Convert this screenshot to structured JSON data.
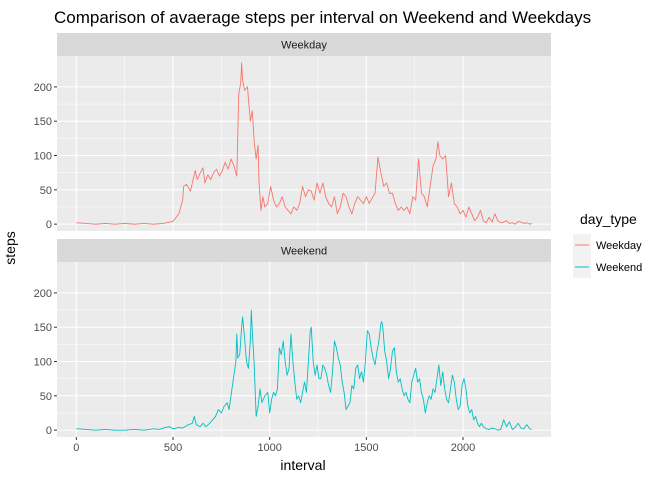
{
  "chart_data": {
    "type": "line",
    "title": "Comparison of avaerage steps per interval on Weekend and Weekdays",
    "xlabel": "interval",
    "ylabel": "steps",
    "xlim": [
      -100,
      2455
    ],
    "ylim": [
      -10,
      245
    ],
    "x_ticks": [
      0,
      500,
      1000,
      1500,
      2000
    ],
    "y_ticks": [
      0,
      50,
      100,
      150,
      200
    ],
    "grid": true,
    "legend": {
      "title": "day_type",
      "position": "right"
    },
    "panels": [
      {
        "label": "Weekday",
        "series": "Weekday",
        "points": [
          [
            0,
            2
          ],
          [
            50,
            1
          ],
          [
            100,
            0
          ],
          [
            150,
            1
          ],
          [
            200,
            0
          ],
          [
            250,
            1
          ],
          [
            300,
            0
          ],
          [
            350,
            1
          ],
          [
            400,
            0
          ],
          [
            450,
            1
          ],
          [
            500,
            4
          ],
          [
            530,
            15
          ],
          [
            550,
            35
          ],
          [
            555,
            55
          ],
          [
            570,
            58
          ],
          [
            590,
            48
          ],
          [
            600,
            60
          ],
          [
            615,
            78
          ],
          [
            625,
            65
          ],
          [
            640,
            74
          ],
          [
            655,
            82
          ],
          [
            665,
            60
          ],
          [
            680,
            72
          ],
          [
            695,
            65
          ],
          [
            710,
            75
          ],
          [
            725,
            80
          ],
          [
            740,
            70
          ],
          [
            755,
            78
          ],
          [
            770,
            90
          ],
          [
            785,
            80
          ],
          [
            800,
            95
          ],
          [
            815,
            85
          ],
          [
            830,
            70
          ],
          [
            840,
            190
          ],
          [
            850,
            205
          ],
          [
            855,
            235
          ],
          [
            860,
            210
          ],
          [
            870,
            195
          ],
          [
            885,
            200
          ],
          [
            900,
            150
          ],
          [
            910,
            165
          ],
          [
            920,
            120
          ],
          [
            930,
            95
          ],
          [
            940,
            115
          ],
          [
            945,
            60
          ],
          [
            955,
            20
          ],
          [
            965,
            40
          ],
          [
            975,
            25
          ],
          [
            990,
            30
          ],
          [
            1005,
            55
          ],
          [
            1020,
            35
          ],
          [
            1035,
            25
          ],
          [
            1050,
            30
          ],
          [
            1065,
            40
          ],
          [
            1080,
            25
          ],
          [
            1095,
            20
          ],
          [
            1110,
            15
          ],
          [
            1125,
            25
          ],
          [
            1140,
            20
          ],
          [
            1155,
            30
          ],
          [
            1170,
            55
          ],
          [
            1185,
            40
          ],
          [
            1200,
            50
          ],
          [
            1215,
            48
          ],
          [
            1230,
            35
          ],
          [
            1245,
            60
          ],
          [
            1260,
            45
          ],
          [
            1275,
            60
          ],
          [
            1290,
            40
          ],
          [
            1305,
            30
          ],
          [
            1320,
            25
          ],
          [
            1335,
            40
          ],
          [
            1350,
            15
          ],
          [
            1365,
            25
          ],
          [
            1380,
            45
          ],
          [
            1395,
            40
          ],
          [
            1410,
            25
          ],
          [
            1425,
            15
          ],
          [
            1440,
            30
          ],
          [
            1455,
            40
          ],
          [
            1470,
            35
          ],
          [
            1485,
            30
          ],
          [
            1500,
            40
          ],
          [
            1515,
            30
          ],
          [
            1530,
            38
          ],
          [
            1545,
            45
          ],
          [
            1560,
            98
          ],
          [
            1575,
            75
          ],
          [
            1590,
            55
          ],
          [
            1605,
            60
          ],
          [
            1620,
            45
          ],
          [
            1635,
            45
          ],
          [
            1650,
            30
          ],
          [
            1665,
            20
          ],
          [
            1680,
            25
          ],
          [
            1695,
            20
          ],
          [
            1710,
            25
          ],
          [
            1725,
            15
          ],
          [
            1740,
            40
          ],
          [
            1755,
            35
          ],
          [
            1770,
            95
          ],
          [
            1785,
            45
          ],
          [
            1800,
            40
          ],
          [
            1815,
            25
          ],
          [
            1830,
            55
          ],
          [
            1845,
            85
          ],
          [
            1860,
            95
          ],
          [
            1870,
            120
          ],
          [
            1880,
            100
          ],
          [
            1895,
            95
          ],
          [
            1910,
            100
          ],
          [
            1925,
            40
          ],
          [
            1940,
            60
          ],
          [
            1955,
            30
          ],
          [
            1970,
            25
          ],
          [
            1985,
            15
          ],
          [
            2000,
            20
          ],
          [
            2015,
            10
          ],
          [
            2030,
            25
          ],
          [
            2045,
            15
          ],
          [
            2060,
            5
          ],
          [
            2075,
            10
          ],
          [
            2090,
            20
          ],
          [
            2105,
            5
          ],
          [
            2120,
            2
          ],
          [
            2135,
            10
          ],
          [
            2150,
            3
          ],
          [
            2165,
            15
          ],
          [
            2180,
            5
          ],
          [
            2195,
            2
          ],
          [
            2210,
            3
          ],
          [
            2225,
            5
          ],
          [
            2240,
            1
          ],
          [
            2255,
            2
          ],
          [
            2270,
            0
          ],
          [
            2285,
            4
          ],
          [
            2300,
            3
          ],
          [
            2315,
            1
          ],
          [
            2330,
            2
          ],
          [
            2345,
            0
          ],
          [
            2355,
            1
          ]
        ]
      },
      {
        "label": "Weekend",
        "series": "Weekend",
        "points": [
          [
            0,
            2
          ],
          [
            50,
            1
          ],
          [
            100,
            0
          ],
          [
            150,
            1
          ],
          [
            200,
            0
          ],
          [
            250,
            0
          ],
          [
            300,
            1
          ],
          [
            350,
            0
          ],
          [
            400,
            2
          ],
          [
            430,
            1
          ],
          [
            450,
            3
          ],
          [
            480,
            5
          ],
          [
            500,
            2
          ],
          [
            530,
            4
          ],
          [
            550,
            3
          ],
          [
            580,
            8
          ],
          [
            600,
            10
          ],
          [
            610,
            20
          ],
          [
            620,
            8
          ],
          [
            640,
            5
          ],
          [
            655,
            10
          ],
          [
            670,
            5
          ],
          [
            690,
            10
          ],
          [
            705,
            15
          ],
          [
            720,
            20
          ],
          [
            735,
            30
          ],
          [
            750,
            25
          ],
          [
            765,
            35
          ],
          [
            780,
            40
          ],
          [
            790,
            30
          ],
          [
            800,
            50
          ],
          [
            815,
            80
          ],
          [
            825,
            100
          ],
          [
            830,
            140
          ],
          [
            835,
            105
          ],
          [
            845,
            110
          ],
          [
            855,
            150
          ],
          [
            860,
            165
          ],
          [
            870,
            135
          ],
          [
            880,
            100
          ],
          [
            890,
            90
          ],
          [
            900,
            130
          ],
          [
            905,
            175
          ],
          [
            910,
            145
          ],
          [
            920,
            95
          ],
          [
            930,
            20
          ],
          [
            940,
            35
          ],
          [
            950,
            60
          ],
          [
            960,
            40
          ],
          [
            975,
            50
          ],
          [
            990,
            55
          ],
          [
            1000,
            25
          ],
          [
            1010,
            45
          ],
          [
            1020,
            55
          ],
          [
            1030,
            50
          ],
          [
            1040,
            60
          ],
          [
            1050,
            120
          ],
          [
            1060,
            110
          ],
          [
            1070,
            130
          ],
          [
            1080,
            100
          ],
          [
            1090,
            80
          ],
          [
            1100,
            90
          ],
          [
            1110,
            140
          ],
          [
            1120,
            100
          ],
          [
            1130,
            70
          ],
          [
            1140,
            45
          ],
          [
            1150,
            50
          ],
          [
            1160,
            40
          ],
          [
            1170,
            55
          ],
          [
            1180,
            70
          ],
          [
            1190,
            55
          ],
          [
            1200,
            100
          ],
          [
            1210,
            145
          ],
          [
            1215,
            150
          ],
          [
            1225,
            100
          ],
          [
            1235,
            80
          ],
          [
            1245,
            95
          ],
          [
            1255,
            75
          ],
          [
            1265,
            75
          ],
          [
            1275,
            95
          ],
          [
            1285,
            90
          ],
          [
            1295,
            80
          ],
          [
            1305,
            65
          ],
          [
            1315,
            55
          ],
          [
            1325,
            85
          ],
          [
            1335,
            130
          ],
          [
            1345,
            120
          ],
          [
            1355,
            105
          ],
          [
            1365,
            95
          ],
          [
            1375,
            70
          ],
          [
            1385,
            55
          ],
          [
            1395,
            30
          ],
          [
            1405,
            35
          ],
          [
            1415,
            40
          ],
          [
            1425,
            65
          ],
          [
            1435,
            60
          ],
          [
            1445,
            90
          ],
          [
            1455,
            95
          ],
          [
            1465,
            75
          ],
          [
            1475,
            85
          ],
          [
            1485,
            70
          ],
          [
            1495,
            100
          ],
          [
            1505,
            145
          ],
          [
            1515,
            140
          ],
          [
            1525,
            120
          ],
          [
            1535,
            105
          ],
          [
            1545,
            95
          ],
          [
            1555,
            115
          ],
          [
            1565,
            130
          ],
          [
            1575,
            155
          ],
          [
            1580,
            158
          ],
          [
            1585,
            150
          ],
          [
            1595,
            115
          ],
          [
            1605,
            100
          ],
          [
            1615,
            75
          ],
          [
            1625,
            90
          ],
          [
            1635,
            115
          ],
          [
            1645,
            120
          ],
          [
            1655,
            85
          ],
          [
            1665,
            70
          ],
          [
            1675,
            75
          ],
          [
            1685,
            60
          ],
          [
            1695,
            50
          ],
          [
            1705,
            55
          ],
          [
            1715,
            45
          ],
          [
            1725,
            40
          ],
          [
            1735,
            70
          ],
          [
            1745,
            80
          ],
          [
            1755,
            90
          ],
          [
            1765,
            70
          ],
          [
            1775,
            75
          ],
          [
            1785,
            55
          ],
          [
            1795,
            45
          ],
          [
            1805,
            25
          ],
          [
            1815,
            40
          ],
          [
            1825,
            50
          ],
          [
            1835,
            45
          ],
          [
            1845,
            60
          ],
          [
            1855,
            55
          ],
          [
            1865,
            75
          ],
          [
            1875,
            95
          ],
          [
            1885,
            65
          ],
          [
            1895,
            85
          ],
          [
            1905,
            60
          ],
          [
            1915,
            45
          ],
          [
            1925,
            40
          ],
          [
            1935,
            60
          ],
          [
            1945,
            80
          ],
          [
            1955,
            70
          ],
          [
            1965,
            45
          ],
          [
            1975,
            30
          ],
          [
            1985,
            35
          ],
          [
            1995,
            65
          ],
          [
            2005,
            75
          ],
          [
            2015,
            60
          ],
          [
            2025,
            35
          ],
          [
            2035,
            25
          ],
          [
            2045,
            30
          ],
          [
            2055,
            15
          ],
          [
            2065,
            20
          ],
          [
            2075,
            10
          ],
          [
            2085,
            5
          ],
          [
            2095,
            10
          ],
          [
            2105,
            5
          ],
          [
            2120,
            2
          ],
          [
            2135,
            1
          ],
          [
            2150,
            3
          ],
          [
            2165,
            2
          ],
          [
            2180,
            0
          ],
          [
            2195,
            1
          ],
          [
            2210,
            15
          ],
          [
            2225,
            5
          ],
          [
            2240,
            12
          ],
          [
            2255,
            1
          ],
          [
            2270,
            4
          ],
          [
            2285,
            10
          ],
          [
            2300,
            3
          ],
          [
            2315,
            2
          ],
          [
            2330,
            8
          ],
          [
            2345,
            2
          ],
          [
            2355,
            1
          ]
        ]
      }
    ],
    "series": [
      {
        "name": "Weekday",
        "color": "#f8766d"
      },
      {
        "name": "Weekend",
        "color": "#00bfc4"
      }
    ]
  }
}
